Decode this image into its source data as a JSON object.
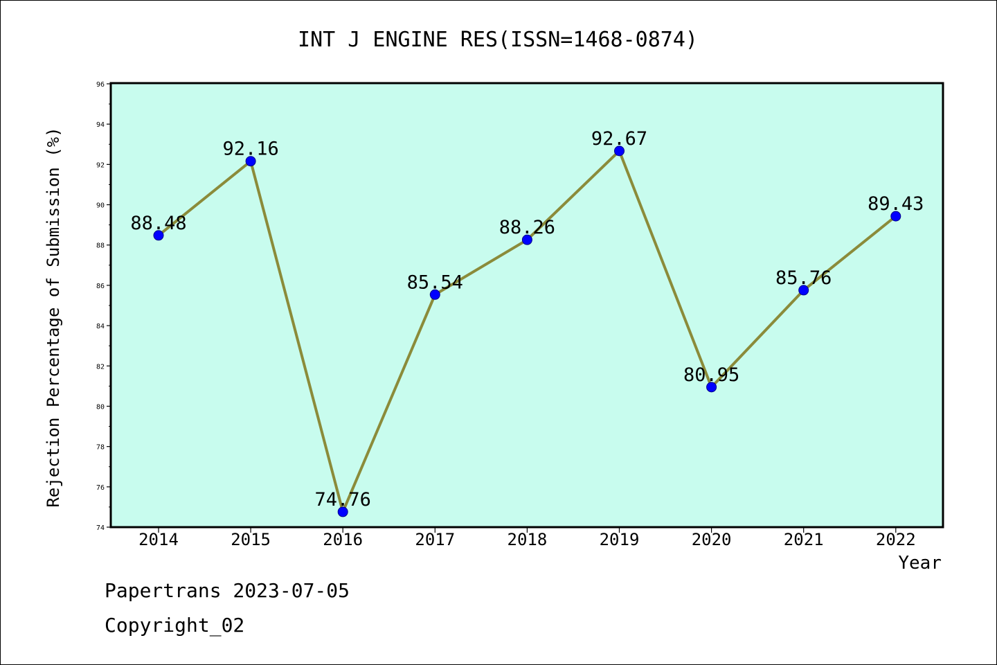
{
  "chart_data": {
    "type": "line",
    "title": "INT J ENGINE RES(ISSN=1468-0874)",
    "xlabel": "Year",
    "ylabel": "Rejection Percentage of Submission (%)",
    "categories": [
      "2014",
      "2015",
      "2016",
      "2017",
      "2018",
      "2019",
      "2020",
      "2021",
      "2022"
    ],
    "values": [
      88.48,
      92.16,
      74.76,
      85.54,
      88.26,
      92.67,
      80.95,
      85.76,
      89.43
    ],
    "data_labels": [
      "88.48",
      "92.16",
      "74.76",
      "85.54",
      "88.26",
      "92.67",
      "80.95",
      "85.76",
      "89.43"
    ],
    "ylim": [
      74,
      96
    ],
    "yticks": [
      74,
      76,
      78,
      80,
      82,
      84,
      86,
      88,
      90,
      92,
      94,
      96
    ],
    "grid": false,
    "legend": "none",
    "colors": {
      "plot_background": "#c8fcee",
      "line": "#8b8b3a",
      "marker": "#0000ff"
    }
  },
  "footer": {
    "line1": "Papertrans 2023-07-05",
    "line2": "Copyright_02"
  }
}
